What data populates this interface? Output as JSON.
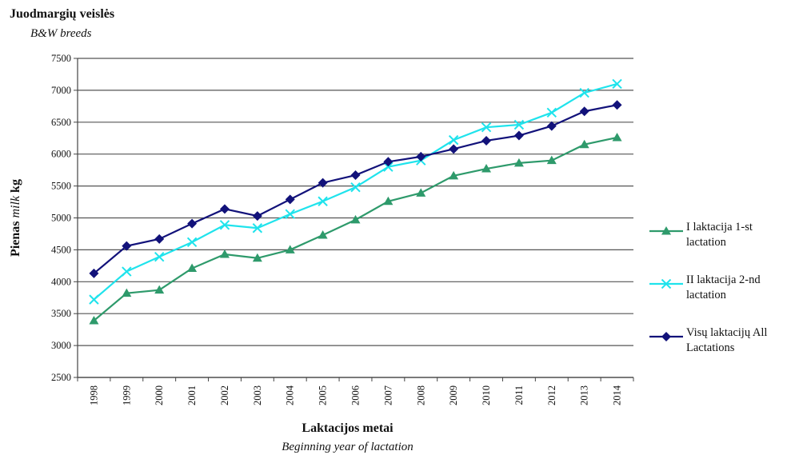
{
  "chart_data": {
    "type": "line",
    "title": "Juodmargių veislės",
    "subtitle": "B&W breeds",
    "ylabel_main": "Pienas",
    "ylabel_italic": "milk",
    "ylabel_unit": "kg",
    "xlabel": "Laktacijos metai",
    "xlabel_sub": "Beginning year of lactation",
    "ylim": [
      2500,
      7500
    ],
    "yticks": [
      2500,
      3000,
      3500,
      4000,
      4500,
      5000,
      5500,
      6000,
      6500,
      7000,
      7500
    ],
    "grid": true,
    "legend_position": "right",
    "categories": [
      "1998",
      "1999",
      "2000",
      "2001",
      "2002",
      "2003",
      "2004",
      "2005",
      "2006",
      "2007",
      "2008",
      "2009",
      "2010",
      "2011",
      "2012",
      "2013",
      "2014"
    ],
    "series": [
      {
        "name": "I laktacija 1-st lactation",
        "label_lines": [
          "I laktacija 1-st",
          "lactation"
        ],
        "color": "#2e9a6b",
        "marker": "triangle",
        "values": [
          3390,
          3820,
          3870,
          4210,
          4430,
          4370,
          4500,
          4730,
          4970,
          5260,
          5390,
          5660,
          5770,
          5860,
          5900,
          6150,
          6260
        ]
      },
      {
        "name": "II laktacija 2-nd lactation",
        "label_lines": [
          "II laktacija 2-nd",
          "lactation"
        ],
        "color": "#1fe3ec",
        "marker": "x",
        "values": [
          3720,
          4160,
          4390,
          4620,
          4890,
          4840,
          5060,
          5260,
          5480,
          5800,
          5900,
          6220,
          6420,
          6460,
          6650,
          6960,
          7100
        ]
      },
      {
        "name": "Visų laktacijų All Lactations",
        "label_lines": [
          "Visų laktacijų All",
          "Lactations"
        ],
        "color": "#12127a",
        "marker": "diamond",
        "values": [
          4130,
          4560,
          4670,
          4910,
          5140,
          5030,
          5290,
          5550,
          5670,
          5880,
          5960,
          6080,
          6210,
          6290,
          6440,
          6670,
          6770
        ]
      }
    ]
  }
}
